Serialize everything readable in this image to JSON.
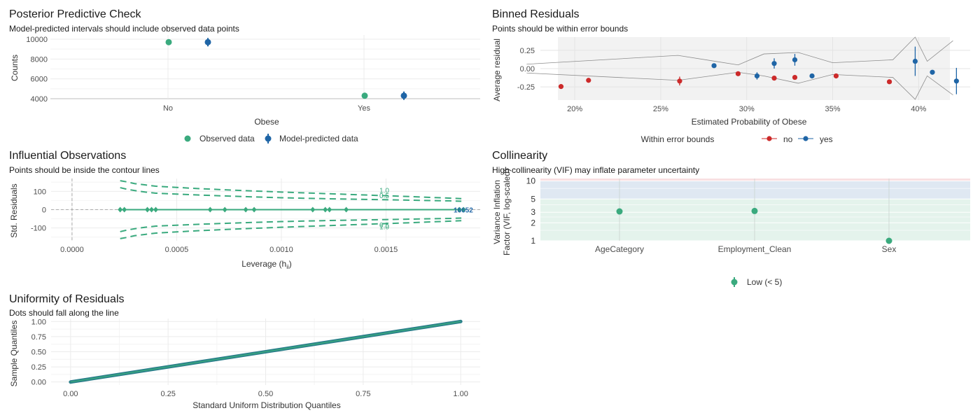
{
  "colors": {
    "observed": "#3aaa7e",
    "predicted": "#1f65a6",
    "no": "#cc2a2a",
    "yes": "#1f65a6",
    "low_band": "#e4f3ec",
    "mod_band": "#dfe8f2",
    "high_band": "#f9e0e2",
    "grid": "#ebebeb",
    "text": "#4d4d4d"
  },
  "chart_data": [
    {
      "id": "ppc",
      "type": "scatter",
      "title": "Posterior Predictive Check",
      "subtitle": "Model-predicted intervals should include observed data points",
      "xlabel": "Obese",
      "ylabel": "Counts",
      "categories": [
        "No",
        "Yes"
      ],
      "ylim": [
        4000,
        10000
      ],
      "yticks": [
        4000,
        6000,
        8000,
        10000
      ],
      "ytick_labels": [
        "4000",
        "6000",
        "8000",
        "10000"
      ],
      "series": [
        {
          "name": "Observed data",
          "values": [
            9700,
            4300
          ]
        },
        {
          "name": "Model-predicted data",
          "values": [
            9700,
            4300
          ]
        }
      ],
      "legend": "bottom"
    },
    {
      "id": "binned",
      "type": "scatter",
      "title": "Binned Residuals",
      "subtitle": "Points should be within error bounds",
      "xlabel": "Estimated Probability of Obese",
      "ylabel": "Average residual",
      "xlim": [
        0.18,
        0.43
      ],
      "ylim": [
        -0.43,
        0.43
      ],
      "xticks": [
        0.2,
        0.25,
        0.3,
        0.35,
        0.4
      ],
      "xtick_labels": [
        "20%",
        "25%",
        "30%",
        "35%",
        "40%"
      ],
      "yticks": [
        -0.25,
        0.0,
        0.25
      ],
      "ytick_labels": [
        "-0.25",
        "0.00",
        "0.25"
      ],
      "legend_title": "Within error bounds",
      "legend_labels": [
        "no",
        "yes"
      ],
      "points": [
        {
          "x": 0.192,
          "y": -0.245,
          "within": "no",
          "err": 0
        },
        {
          "x": 0.208,
          "y": -0.16,
          "within": "no",
          "err": 0
        },
        {
          "x": 0.261,
          "y": -0.17,
          "within": "no",
          "err": 0.06
        },
        {
          "x": 0.281,
          "y": 0.04,
          "within": "yes",
          "err": 0
        },
        {
          "x": 0.295,
          "y": -0.07,
          "within": "no",
          "err": 0
        },
        {
          "x": 0.306,
          "y": -0.1,
          "within": "yes",
          "err": 0.05
        },
        {
          "x": 0.316,
          "y": 0.07,
          "within": "yes",
          "err": 0.07
        },
        {
          "x": 0.316,
          "y": -0.13,
          "within": "no",
          "err": 0
        },
        {
          "x": 0.328,
          "y": 0.12,
          "within": "yes",
          "err": 0.08
        },
        {
          "x": 0.328,
          "y": -0.12,
          "within": "no",
          "err": 0
        },
        {
          "x": 0.338,
          "y": -0.1,
          "within": "yes",
          "err": 0
        },
        {
          "x": 0.352,
          "y": -0.1,
          "within": "no",
          "err": 0
        },
        {
          "x": 0.383,
          "y": -0.18,
          "within": "no",
          "err": 0
        },
        {
          "x": 0.398,
          "y": 0.1,
          "within": "yes",
          "err": 0.2
        },
        {
          "x": 0.408,
          "y": -0.05,
          "within": "yes",
          "err": 0
        },
        {
          "x": 0.422,
          "y": -0.17,
          "within": "yes",
          "err": 0.18
        }
      ],
      "bounds_x": [
        0.172,
        0.26,
        0.295,
        0.31,
        0.33,
        0.35,
        0.385,
        0.398,
        0.405,
        0.42
      ],
      "bounds_upper": [
        0.06,
        0.18,
        0.05,
        0.2,
        0.22,
        0.08,
        0.12,
        0.43,
        0.1,
        0.38
      ],
      "bounds_lower": [
        -0.06,
        -0.16,
        -0.05,
        -0.1,
        -0.2,
        -0.08,
        -0.12,
        -0.42,
        -0.1,
        -0.36
      ]
    },
    {
      "id": "influential",
      "type": "scatter",
      "title": "Influential Observations",
      "subtitle": "Points should be inside the contour lines",
      "xlabel": "Leverage (h",
      "xlabel_sub": "ii",
      "xlabel_close": ")",
      "ylabel": "Std. Residuals",
      "xlim": [
        -0.0001,
        0.00195
      ],
      "ylim": [
        -170,
        170
      ],
      "xticks": [
        0,
        0.0005,
        0.001,
        0.0015
      ],
      "xtick_labels": [
        "0.0000",
        "0.0005",
        "0.0010",
        "0.0015"
      ],
      "yticks": [
        -100,
        0,
        100
      ],
      "ytick_labels": [
        "-100",
        "0",
        "100"
      ],
      "contour_labels": [
        "1.0",
        "0.5",
        "0.5",
        "1.0"
      ],
      "point_labels_text": "16652",
      "points_x": [
        0.00023,
        0.00025,
        0.00036,
        0.00038,
        0.0004,
        0.00066,
        0.00073,
        0.00083,
        0.00087,
        0.00115,
        0.00121,
        0.00123,
        0.00131,
        0.00185,
        0.00187
      ],
      "contour_x": [
        0.00023,
        0.00026,
        0.0003,
        0.00035,
        0.0004,
        0.0006,
        0.0008,
        0.001,
        0.0012,
        0.0014,
        0.0016,
        0.0018,
        0.00186
      ],
      "contour_outer": [
        158,
        152,
        142,
        135,
        128,
        115,
        105,
        96,
        88,
        80,
        72,
        63,
        60
      ],
      "contour_inner": [
        120,
        112,
        104,
        96,
        90,
        80,
        72,
        65,
        60,
        56,
        52,
        48,
        46
      ]
    },
    {
      "id": "collinearity",
      "type": "scatter",
      "title": "Collinearity",
      "subtitle": "High collinearity (VIF) may inflate parameter uncertainty",
      "ylabel_lines": [
        "Variance Inflation",
        "Factor (VIF, log-scaled)"
      ],
      "categories": [
        "AgeCategory",
        "Employment_Clean",
        "Sex"
      ],
      "values": [
        3.1,
        3.15,
        1.0
      ],
      "yscale": "log",
      "ylim": [
        1,
        11
      ],
      "yticks": [
        1,
        2,
        3,
        5,
        10
      ],
      "ytick_labels": [
        "1",
        "2",
        "3",
        "5",
        "10"
      ],
      "legend_labels": [
        "Low (< 5)"
      ]
    },
    {
      "id": "uniformity",
      "type": "line",
      "title": "Uniformity of Residuals",
      "subtitle": "Dots should fall along the line",
      "xlabel": "Standard Uniform Distribution Quantiles",
      "ylabel": "Sample Quantiles",
      "xlim": [
        -0.05,
        1.05
      ],
      "ylim": [
        -0.05,
        1.05
      ],
      "xticks": [
        0,
        0.25,
        0.5,
        0.75,
        1
      ],
      "xtick_labels": [
        "0.00",
        "0.25",
        "0.50",
        "0.75",
        "1.00"
      ],
      "yticks": [
        0,
        0.25,
        0.5,
        0.75,
        1
      ],
      "ytick_labels": [
        "0.00",
        "0.25",
        "0.50",
        "0.75",
        "1.00"
      ]
    }
  ]
}
